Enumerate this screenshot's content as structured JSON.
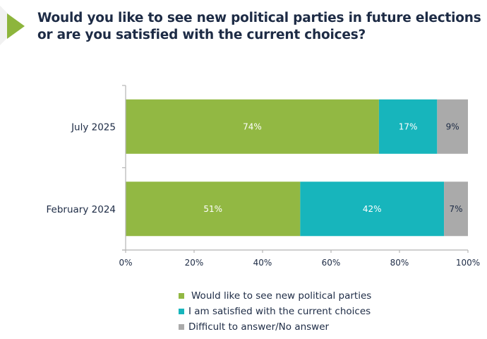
{
  "colors": {
    "green": "#92b843",
    "teal": "#17b5bc",
    "grey": "#aaaaaa",
    "text": "#1d2b45",
    "axis": "#b5b5b5"
  },
  "chart_data": {
    "type": "bar",
    "orientation": "horizontal",
    "stacked": true,
    "title": "Would you like to see new political parties in future elections or are you satisfied with the current choices?",
    "categories": [
      "July 2025",
      "February 2024"
    ],
    "series": [
      {
        "name": "Would like to see new political parties",
        "color": "#92b843",
        "label_color": "#ffffff",
        "values": [
          74,
          51
        ],
        "labels": [
          "74%",
          "51%"
        ]
      },
      {
        "name": "I am satisfied with the current choices",
        "color": "#17b5bc",
        "label_color": "#ffffff",
        "values": [
          17,
          42
        ],
        "labels": [
          "17%",
          "42%"
        ]
      },
      {
        "name": "Difficult to answer/No answer",
        "color": "#aaaaaa",
        "label_color": "#1d2b45",
        "values": [
          9,
          7
        ],
        "labels": [
          "9%",
          "7%"
        ]
      }
    ],
    "xlabel": "",
    "ylabel": "",
    "xlim": [
      0,
      100
    ],
    "x_ticks": [
      0,
      20,
      40,
      60,
      80,
      100
    ],
    "x_tick_labels": [
      "0%",
      "20%",
      "40%",
      "60%",
      "80%",
      "100%"
    ],
    "grid": false,
    "legend_position": "bottom"
  }
}
